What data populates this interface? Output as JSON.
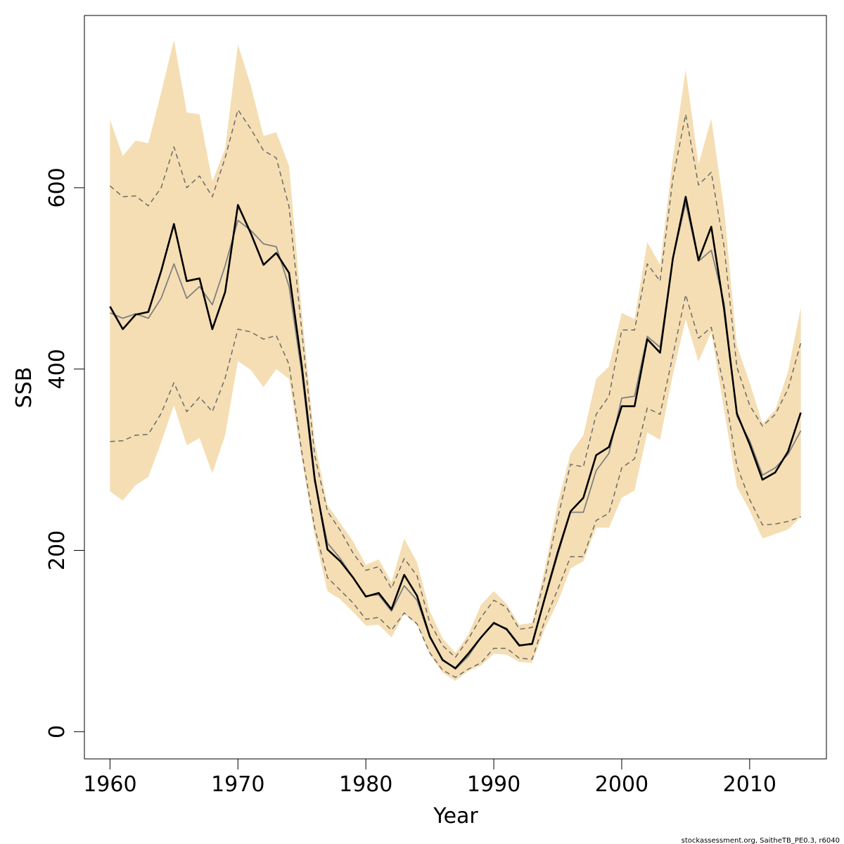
{
  "chart_data": {
    "type": "line",
    "xlabel": "Year",
    "ylabel": "SSB",
    "xlim": [
      1958,
      2016
    ],
    "ylim": [
      -30,
      790
    ],
    "x_ticks": [
      1960,
      1970,
      1980,
      1990,
      2000,
      2010
    ],
    "y_ticks": [
      0,
      200,
      400,
      600
    ],
    "grid": false,
    "colors": {
      "band": "#f5deb3",
      "estimate": "#000000",
      "gray_line": "#808080",
      "dashed": "#6b6b6b"
    },
    "years": [
      1960,
      1961,
      1962,
      1963,
      1964,
      1965,
      1966,
      1967,
      1968,
      1969,
      1970,
      1971,
      1972,
      1973,
      1974,
      1975,
      1976,
      1977,
      1978,
      1979,
      1980,
      1981,
      1982,
      1983,
      1984,
      1985,
      1986,
      1987,
      1988,
      1989,
      1990,
      1991,
      1992,
      1993,
      1994,
      1995,
      1996,
      1997,
      1998,
      1999,
      2000,
      2001,
      2002,
      2003,
      2004,
      2005,
      2006,
      2007,
      2008,
      2009,
      2010,
      2011,
      2012,
      2013,
      2014
    ],
    "band_upper": [
      675,
      635,
      652,
      649,
      705,
      763,
      683,
      681,
      607,
      643,
      758,
      713,
      657,
      661,
      624,
      462,
      320,
      250,
      230,
      210,
      184,
      190,
      165,
      213,
      187,
      133,
      103,
      87,
      107,
      140,
      155,
      141,
      118,
      120,
      180,
      252,
      307,
      327,
      389,
      403,
      462,
      455,
      540,
      515,
      633,
      730,
      626,
      676,
      577,
      426,
      385,
      340,
      355,
      397,
      468
    ],
    "band_lower": [
      265,
      255,
      272,
      281,
      319,
      360,
      316,
      324,
      285,
      327,
      409,
      399,
      380,
      400,
      389,
      300,
      216,
      155,
      146,
      132,
      117,
      118,
      104,
      130,
      118,
      85,
      65,
      56,
      67,
      73,
      86,
      85,
      77,
      76,
      114,
      143,
      180,
      188,
      225,
      225,
      258,
      266,
      330,
      322,
      394,
      455,
      408,
      441,
      355,
      270,
      244,
      213,
      218,
      223,
      237
    ],
    "upper_dashed": [
      602,
      590,
      591,
      580,
      600,
      645,
      600,
      613,
      590,
      633,
      686,
      665,
      641,
      633,
      579,
      441,
      305,
      243,
      222,
      197,
      178,
      182,
      158,
      191,
      172,
      120,
      95,
      82,
      102,
      126,
      145,
      137,
      113,
      115,
      170,
      236,
      295,
      292,
      350,
      370,
      443,
      443,
      516,
      497,
      610,
      681,
      603,
      617,
      535,
      402,
      360,
      337,
      350,
      378,
      429
    ],
    "lower_dashed": [
      320,
      321,
      327,
      328,
      351,
      385,
      353,
      369,
      353,
      390,
      444,
      441,
      433,
      437,
      405,
      308,
      225,
      170,
      156,
      142,
      124,
      126,
      112,
      131,
      119,
      87,
      68,
      60,
      69,
      76,
      92,
      92,
      81,
      80,
      123,
      157,
      193,
      193,
      233,
      241,
      291,
      301,
      357,
      350,
      415,
      482,
      434,
      446,
      380,
      293,
      256,
      228,
      229,
      232,
      237
    ],
    "gray_series": [
      462,
      456,
      461,
      456,
      478,
      516,
      478,
      491,
      471,
      514,
      564,
      553,
      538,
      535,
      491,
      395,
      276,
      208,
      191,
      170,
      150,
      151,
      133,
      161,
      145,
      104,
      80,
      69,
      83,
      104,
      119,
      114,
      96,
      96,
      147,
      195,
      242,
      242,
      288,
      307,
      368,
      370,
      436,
      424,
      522,
      583,
      519,
      531,
      473,
      348,
      321,
      283,
      291,
      306,
      332
    ],
    "estimate": [
      469,
      444,
      460,
      463,
      508,
      560,
      497,
      500,
      444,
      485,
      581,
      550,
      515,
      528,
      506,
      403,
      279,
      201,
      188,
      170,
      149,
      153,
      135,
      173,
      150,
      105,
      79,
      70,
      86,
      104,
      120,
      113,
      95,
      97,
      148,
      198,
      243,
      258,
      305,
      314,
      359,
      359,
      433,
      418,
      522,
      590,
      520,
      557,
      466,
      351,
      317,
      278,
      286,
      309,
      352
    ],
    "credit": "stockassessment.org, SaitheTB_PE0.3, r6040"
  }
}
